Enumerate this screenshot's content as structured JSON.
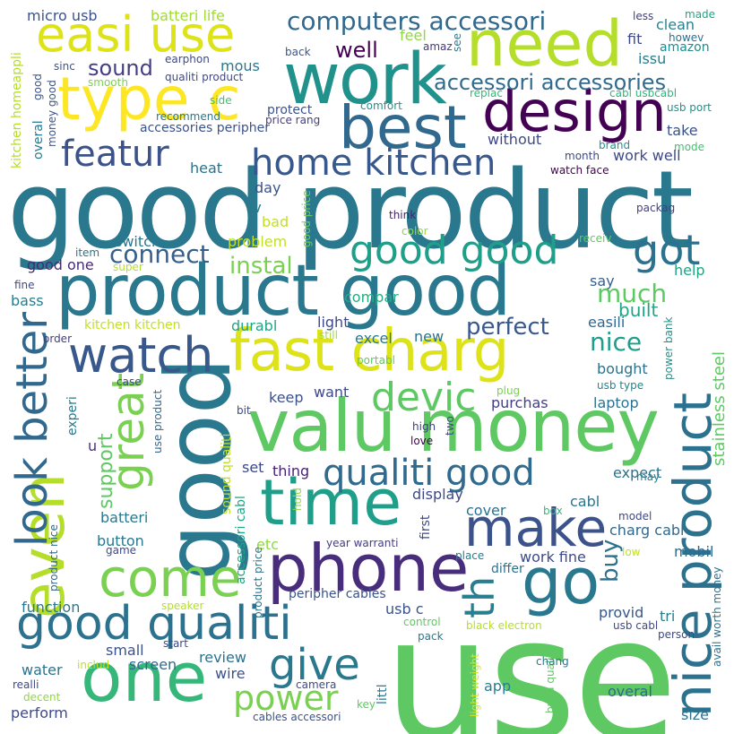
{
  "words": [
    {
      "text": "use",
      "color": "#5ec962"
    },
    {
      "text": "good product",
      "color": "#2a788e"
    },
    {
      "text": "good",
      "color": "#2a788e"
    },
    {
      "text": "product good",
      "color": "#2a788e"
    },
    {
      "text": "valu money",
      "color": "#5ec962"
    },
    {
      "text": "work",
      "color": "#21918c"
    },
    {
      "text": "fast charg",
      "color": "#dde318"
    },
    {
      "text": "phone",
      "color": "#472d7b"
    },
    {
      "text": "nice product",
      "color": "#2c728e"
    },
    {
      "text": "one",
      "color": "#35b779"
    },
    {
      "text": "time",
      "color": "#1f9e89"
    },
    {
      "text": "need",
      "color": "#b5de2b"
    },
    {
      "text": "best",
      "color": "#31688e"
    },
    {
      "text": "design",
      "color": "#440154"
    },
    {
      "text": "easi use",
      "color": "#dde318"
    },
    {
      "text": "type c",
      "color": "#fde725"
    },
    {
      "text": "watch",
      "color": "#38588c"
    },
    {
      "text": "good qualiti",
      "color": "#2c728e"
    },
    {
      "text": "come",
      "color": "#7ad151"
    },
    {
      "text": "go",
      "color": "#2a788e"
    },
    {
      "text": "make",
      "color": "#3b528b"
    },
    {
      "text": "even",
      "color": "#b5de2b"
    },
    {
      "text": "look better",
      "color": "#31688e"
    },
    {
      "text": "great",
      "color": "#7ad151"
    },
    {
      "text": "qualiti good",
      "color": "#306a8e"
    },
    {
      "text": "home kitchen",
      "color": "#38588c"
    },
    {
      "text": "featur",
      "color": "#3b528b"
    },
    {
      "text": "good good",
      "color": "#1f9e89"
    },
    {
      "text": "devic",
      "color": "#5ec962"
    },
    {
      "text": "give",
      "color": "#2a788e"
    },
    {
      "text": "power",
      "color": "#7ad151"
    },
    {
      "text": "got",
      "color": "#2c728e"
    },
    {
      "text": "th",
      "color": "#287d8e"
    },
    {
      "text": "computers accessori",
      "color": "#31688e"
    },
    {
      "text": "accessori accessories",
      "color": "#306a8e"
    },
    {
      "text": "connect",
      "color": "#355f8d"
    },
    {
      "text": "instal",
      "color": "#7ad151"
    },
    {
      "text": "perfect",
      "color": "#38588c"
    },
    {
      "text": "much",
      "color": "#5ec962"
    },
    {
      "text": "nice",
      "color": "#1f9e89"
    },
    {
      "text": "built",
      "color": "#20a486"
    },
    {
      "text": "sound",
      "color": "#433e85"
    },
    {
      "text": "well",
      "color": "#440154"
    },
    {
      "text": "support",
      "color": "#5ec962"
    },
    {
      "text": "buy",
      "color": "#2c728e"
    },
    {
      "text": "stainless steel",
      "color": "#5ec962"
    },
    {
      "text": "micro usb",
      "color": "#3b528b"
    },
    {
      "text": "batteri life",
      "color": "#a2da37"
    },
    {
      "text": "feel",
      "color": "#90d743"
    },
    {
      "text": "amaz",
      "color": "#453882"
    },
    {
      "text": "see",
      "color": "#287d8e"
    },
    {
      "text": "less",
      "color": "#424086"
    },
    {
      "text": "made",
      "color": "#20a486"
    },
    {
      "text": "clean",
      "color": "#25838e"
    },
    {
      "text": "fit",
      "color": "#3e4989"
    },
    {
      "text": "howev",
      "color": "#2c728e"
    },
    {
      "text": "amazon",
      "color": "#238a8d"
    },
    {
      "text": "issu",
      "color": "#287d8e"
    },
    {
      "text": "back",
      "color": "#39568c"
    },
    {
      "text": "earphon",
      "color": "#3e4a89"
    },
    {
      "text": "mous",
      "color": "#2a788e"
    },
    {
      "text": "sinc",
      "color": "#39568c"
    },
    {
      "text": "qualiti product",
      "color": "#3f4788"
    },
    {
      "text": "smooth",
      "color": "#7ad151"
    },
    {
      "text": "replac",
      "color": "#35b779"
    },
    {
      "text": "cabl usbcabl",
      "color": "#31b57b"
    },
    {
      "text": "side",
      "color": "#44bf70"
    },
    {
      "text": "protect",
      "color": "#3b528b"
    },
    {
      "text": "comfort",
      "color": "#21918c"
    },
    {
      "text": "usb port",
      "color": "#21918c"
    },
    {
      "text": "recommend",
      "color": "#2a788e"
    },
    {
      "text": "accessories peripher",
      "color": "#3b528b"
    },
    {
      "text": "price rang",
      "color": "#433e85"
    },
    {
      "text": "brand",
      "color": "#21918c"
    },
    {
      "text": "take",
      "color": "#3b528b"
    },
    {
      "text": "without",
      "color": "#3e4989"
    },
    {
      "text": "mode",
      "color": "#44bf70"
    },
    {
      "text": "month",
      "color": "#3e4989"
    },
    {
      "text": "work well",
      "color": "#3e4989"
    },
    {
      "text": "heat",
      "color": "#2c728e"
    },
    {
      "text": "watch face",
      "color": "#440154"
    },
    {
      "text": "kitchen homeappli",
      "color": "#b5de2b"
    },
    {
      "text": "overal",
      "color": "#2a788e"
    },
    {
      "text": "money good",
      "color": "#39568c"
    },
    {
      "text": "good",
      "color": "#3b528b"
    },
    {
      "text": "day",
      "color": "#3b528b"
    },
    {
      "text": "tv",
      "color": "#2a788e"
    },
    {
      "text": "bad",
      "color": "#c2df23"
    },
    {
      "text": "think",
      "color": "#482173"
    },
    {
      "text": "packag",
      "color": "#433e85"
    },
    {
      "text": "problem",
      "color": "#c2df23"
    },
    {
      "text": "color",
      "color": "#90d743"
    },
    {
      "text": "good price",
      "color": "#6ccd5a"
    },
    {
      "text": "item",
      "color": "#2c728e"
    },
    {
      "text": "receiv",
      "color": "#5ec962"
    },
    {
      "text": "switch",
      "color": "#2a788e"
    },
    {
      "text": "super",
      "color": "#b5de2b"
    },
    {
      "text": "good one",
      "color": "#482878"
    },
    {
      "text": "say",
      "color": "#355f8d"
    },
    {
      "text": "fine",
      "color": "#3e4989"
    },
    {
      "text": "option",
      "color": "#433e85"
    },
    {
      "text": "help",
      "color": "#20a486"
    },
    {
      "text": "bass",
      "color": "#287d8e"
    },
    {
      "text": "compar",
      "color": "#25ab82"
    },
    {
      "text": "kitchen kitchen",
      "color": "#c2df23"
    },
    {
      "text": "durabl",
      "color": "#20a486"
    },
    {
      "text": "light",
      "color": "#3e4989"
    },
    {
      "text": "easili",
      "color": "#31688e"
    },
    {
      "text": "order",
      "color": "#424086"
    },
    {
      "text": "still",
      "color": "#a2da37"
    },
    {
      "text": "excel",
      "color": "#2a788e"
    },
    {
      "text": "new",
      "color": "#2c728e"
    },
    {
      "text": "power bank",
      "color": "#21918c"
    },
    {
      "text": "portabl",
      "color": "#5ec962"
    },
    {
      "text": "bought",
      "color": "#2c728e"
    },
    {
      "text": "keep",
      "color": "#3b528b"
    },
    {
      "text": "want",
      "color": "#3e4989"
    },
    {
      "text": "case",
      "color": "#3e4989"
    },
    {
      "text": "plug",
      "color": "#7ad151"
    },
    {
      "text": "purchas",
      "color": "#433e85"
    },
    {
      "text": "usb type",
      "color": "#25838e"
    },
    {
      "text": "experi",
      "color": "#2a788e"
    },
    {
      "text": "use product",
      "color": "#31688e"
    },
    {
      "text": "bit",
      "color": "#3e4989"
    },
    {
      "text": "laptop",
      "color": "#2c728e"
    },
    {
      "text": "high",
      "color": "#424086"
    },
    {
      "text": "love",
      "color": "#440154"
    },
    {
      "text": "two",
      "color": "#3e4989"
    },
    {
      "text": "u",
      "color": "#46327e"
    },
    {
      "text": "sound qualiti",
      "color": "#bddf26"
    },
    {
      "text": "set",
      "color": "#3e4989"
    },
    {
      "text": "thing",
      "color": "#482173"
    },
    {
      "text": "hold",
      "color": "#90d743"
    },
    {
      "text": "display",
      "color": "#3e4989"
    },
    {
      "text": "expect",
      "color": "#2c728e"
    },
    {
      "text": "cabl",
      "color": "#2c728e"
    },
    {
      "text": "may",
      "color": "#287d8e"
    },
    {
      "text": "batteri",
      "color": "#2a788e"
    },
    {
      "text": "accessori cabl",
      "color": "#20a486"
    },
    {
      "text": "etc",
      "color": "#90d743"
    },
    {
      "text": "first",
      "color": "#3e4989"
    },
    {
      "text": "cover",
      "color": "#2c728e"
    },
    {
      "text": "box",
      "color": "#35b779"
    },
    {
      "text": "charg cabl",
      "color": "#31688e"
    },
    {
      "text": "product price",
      "color": "#2a788e"
    },
    {
      "text": "model",
      "color": "#3e4989"
    },
    {
      "text": "button",
      "color": "#2a788e"
    },
    {
      "text": "game",
      "color": "#3e4989"
    },
    {
      "text": "year warranti",
      "color": "#433e85"
    },
    {
      "text": "place",
      "color": "#287d8e"
    },
    {
      "text": "low",
      "color": "#c2df23"
    },
    {
      "text": "mobil",
      "color": "#31688e"
    },
    {
      "text": "differ",
      "color": "#2c728e"
    },
    {
      "text": "work fine",
      "color": "#3e4989"
    },
    {
      "text": "product nice",
      "color": "#31688e"
    },
    {
      "text": "function",
      "color": "#2a788e"
    },
    {
      "text": "speaker",
      "color": "#b5de2b"
    },
    {
      "text": "peripher cables",
      "color": "#3b528b"
    },
    {
      "text": "usb c",
      "color": "#3b528b"
    },
    {
      "text": "provid",
      "color": "#38588c"
    },
    {
      "text": "tri",
      "color": "#287d8e"
    },
    {
      "text": "avail worth money",
      "color": "#2c728e"
    },
    {
      "text": "control",
      "color": "#5ec962"
    },
    {
      "text": "black electron",
      "color": "#b5de2b"
    },
    {
      "text": "usb cabl",
      "color": "#3e4989"
    },
    {
      "text": "pack",
      "color": "#2a788e"
    },
    {
      "text": "small",
      "color": "#3b528b"
    },
    {
      "text": "start",
      "color": "#3e4989"
    },
    {
      "text": "light weight",
      "color": "#dde318"
    },
    {
      "text": "person",
      "color": "#3e4989"
    },
    {
      "text": "review",
      "color": "#2c728e"
    },
    {
      "text": "includ",
      "color": "#c2df23"
    },
    {
      "text": "screen",
      "color": "#31688e"
    },
    {
      "text": "littl",
      "color": "#2a788e"
    },
    {
      "text": "water",
      "color": "#2c728e"
    },
    {
      "text": "build qualiti",
      "color": "#5ec962"
    },
    {
      "text": "wire",
      "color": "#3b528b"
    },
    {
      "text": "chang",
      "color": "#2a788e"
    },
    {
      "text": "realli",
      "color": "#3e4989"
    },
    {
      "text": "camera",
      "color": "#3e4989"
    },
    {
      "text": "app",
      "color": "#287d8e"
    },
    {
      "text": "overal",
      "color": "#31688e"
    },
    {
      "text": "decent",
      "color": "#90d743"
    },
    {
      "text": "key",
      "color": "#5ec962"
    },
    {
      "text": "size",
      "color": "#2c728e"
    },
    {
      "text": "perform",
      "color": "#3e4989"
    },
    {
      "text": "cables accessori",
      "color": "#3b528b"
    }
  ]
}
